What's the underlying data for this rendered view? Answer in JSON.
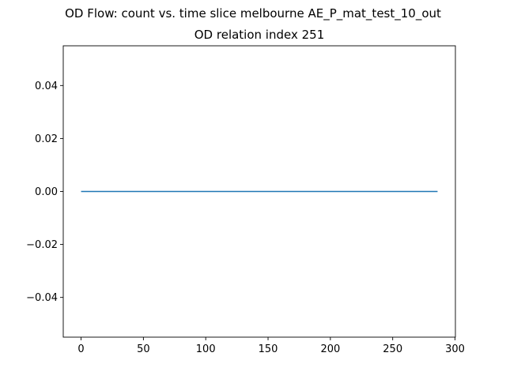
{
  "chart_data": {
    "type": "line",
    "title": "OD Flow: count vs. time slice melbourne AE_P_mat_test_10_out",
    "subtitle": "OD relation index 251",
    "xlabel": "",
    "ylabel": "",
    "xlim": [
      -14.3,
      300.3
    ],
    "ylim": [
      -0.055,
      0.055
    ],
    "x_ticks": [
      0,
      50,
      100,
      150,
      200,
      250,
      300
    ],
    "y_ticks": [
      0.04,
      0.02,
      0.0,
      -0.02,
      -0.04
    ],
    "x_tick_labels": [
      "0",
      "50",
      "100",
      "150",
      "200",
      "250",
      "300"
    ],
    "y_tick_labels": [
      "0.04",
      "0.02",
      "0.00",
      "−0.02",
      "−0.04"
    ],
    "grid": false,
    "series": [
      {
        "x_start": 0,
        "x_end": 286,
        "y": 0.0,
        "color": "#1f77b4"
      }
    ]
  }
}
